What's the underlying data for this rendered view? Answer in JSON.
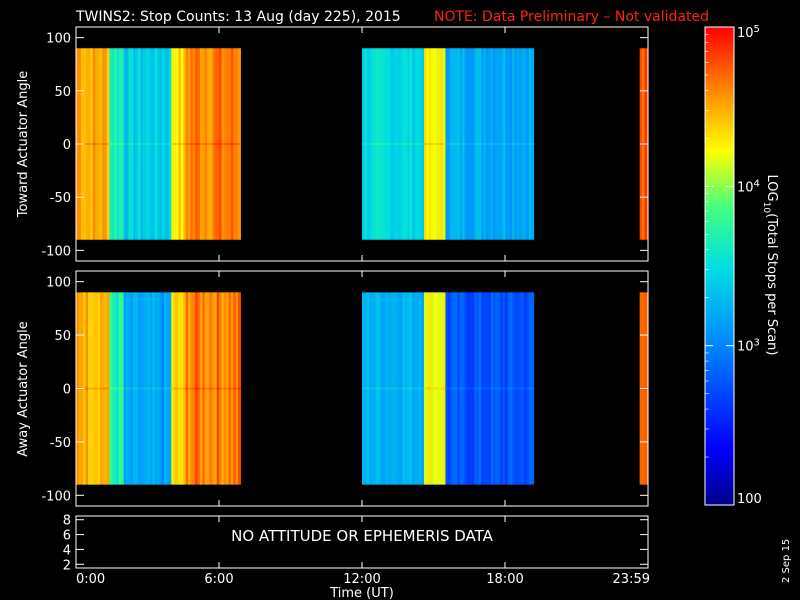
{
  "header": {
    "title": "TWINS2: Stop Counts: 13 Aug (day 225), 2015",
    "note": "NOTE: Data Preliminary – Not validated"
  },
  "colorbar": {
    "label": "LOG10(Total Stops per Scan)",
    "label_main": "LOG",
    "label_sub": "10",
    "label_rest": "(Total Stops per Scan)",
    "tick_labels": [
      "10",
      "10",
      "10",
      "100"
    ],
    "tick_exponents": [
      "5",
      "4",
      "3",
      ""
    ],
    "range": [
      100,
      100000
    ],
    "scale": "log"
  },
  "footer": {
    "message": "NO ATTITUDE OR EPHEMERIS DATA",
    "side_date": "2 Sep 15"
  },
  "chart_data": [
    {
      "type": "heatmap",
      "ylabel": "Toward Actuator Angle",
      "xlabel": "",
      "ylim": [
        -110,
        110
      ],
      "yticks": [
        100,
        50,
        0,
        -50,
        -100
      ],
      "xlim": [
        0,
        24
      ],
      "data_x_ranges": [
        [
          0.0,
          6.9
        ],
        [
          12.0,
          19.2
        ],
        [
          23.65,
          24.0
        ]
      ],
      "y_data_range": [
        -90,
        90
      ],
      "colormap": "rainbow-log",
      "value_range": [
        100,
        100000
      ]
    },
    {
      "type": "heatmap",
      "ylabel": "Away Actuator Angle",
      "xlabel": "",
      "ylim": [
        -110,
        110
      ],
      "yticks": [
        100,
        50,
        0,
        -50,
        -100
      ],
      "xlim": [
        0,
        24
      ],
      "data_x_ranges": [
        [
          0.0,
          6.9
        ],
        [
          12.0,
          19.2
        ],
        [
          23.65,
          24.0
        ]
      ],
      "y_data_range": [
        -90,
        90
      ],
      "colormap": "rainbow-log",
      "value_range": [
        100,
        100000
      ]
    },
    {
      "type": "line",
      "ylabel": "",
      "xlabel": "Time (UT)",
      "xticks": [
        "0:00",
        "6:00",
        "12:00",
        "18:00",
        "23:59"
      ],
      "xlim": [
        0,
        24
      ],
      "ylim": [
        1.5,
        8.5
      ],
      "yticks": [
        "8",
        "6",
        "4",
        "2"
      ]
    }
  ]
}
